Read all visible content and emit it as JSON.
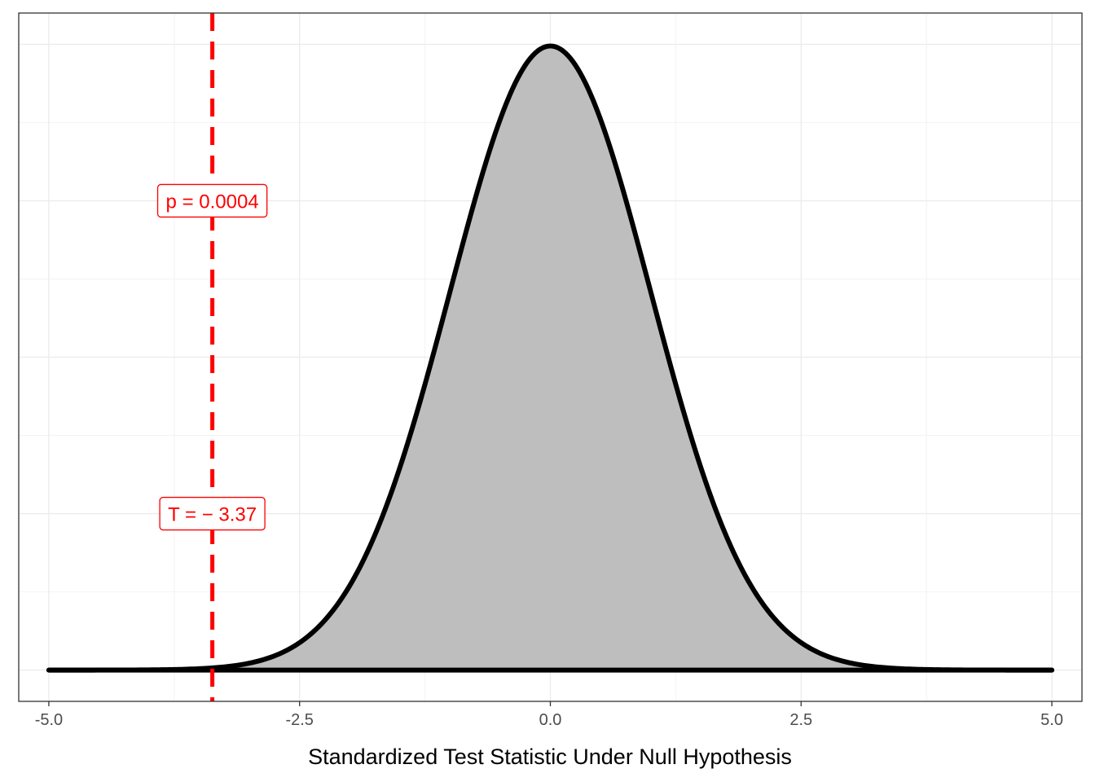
{
  "chart_data": {
    "type": "area",
    "title": "",
    "xlabel": "Standardized Test Statistic Under Null Hypothesis",
    "ylabel": "",
    "xlim": [
      -5.3,
      5.3
    ],
    "ylim": [
      -0.02,
      0.42
    ],
    "x_ticks": [
      -5.0,
      -2.5,
      0.0,
      2.5,
      5.0
    ],
    "x_tick_labels": [
      "-5.0",
      "-2.5",
      "0.0",
      "2.5",
      "5.0"
    ],
    "y_grid": [
      0.0,
      0.05,
      0.1,
      0.15,
      0.2,
      0.25,
      0.3,
      0.35,
      0.4
    ],
    "grid": true,
    "legend": "none",
    "series": [
      {
        "distribution": "standard normal density",
        "x_range": [
          -5,
          5
        ],
        "fill_color": "#bebebe",
        "line_color": "#000000"
      }
    ],
    "observed_statistic": {
      "value": -3.37,
      "color": "#ff0000",
      "linestyle": "dashed"
    },
    "annotations": [
      {
        "text": "p = 0.0004",
        "x": -3.37,
        "y": 0.3
      },
      {
        "text": "T = − 3.37",
        "x": -3.37,
        "y": 0.1
      }
    ]
  }
}
